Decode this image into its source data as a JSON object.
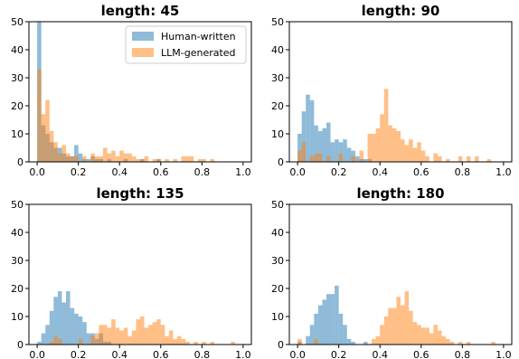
{
  "colors": {
    "human": "#1f77b4",
    "llm": "#ff7f0e",
    "bar_opacity": 0.5,
    "axis": "#000000",
    "background": "#ffffff"
  },
  "legend": {
    "placement": "top-right of first panel",
    "entries": [
      {
        "label": "Human-written",
        "color": "#1f77b4"
      },
      {
        "label": "LLM-generated",
        "color": "#ff7f0e"
      }
    ]
  },
  "chart_data": [
    {
      "type": "histogram",
      "title": "length: 45",
      "bin_width": 0.02,
      "xlim": [
        -0.04,
        1.04
      ],
      "ylim": [
        0,
        50
      ],
      "xticks": [
        "0.0",
        "0.2",
        "0.4",
        "0.6",
        "0.8",
        "1.0"
      ],
      "yticks": [
        "0",
        "10",
        "20",
        "30",
        "40",
        "50"
      ],
      "series": [
        {
          "name": "Human-written",
          "bins": [
            [
              0.0,
              50
            ],
            [
              0.02,
              13
            ],
            [
              0.04,
              10
            ],
            [
              0.06,
              7
            ],
            [
              0.08,
              5
            ],
            [
              0.1,
              5
            ],
            [
              0.12,
              3
            ],
            [
              0.14,
              2
            ],
            [
              0.16,
              2
            ],
            [
              0.18,
              6
            ],
            [
              0.2,
              3
            ],
            [
              0.22,
              1
            ],
            [
              0.24,
              1
            ],
            [
              0.26,
              2
            ],
            [
              0.28,
              1
            ],
            [
              0.3,
              1
            ],
            [
              0.34,
              1
            ],
            [
              0.42,
              1
            ],
            [
              0.5,
              1
            ],
            [
              0.58,
              1
            ]
          ]
        },
        {
          "name": "LLM-generated",
          "bins": [
            [
              0.0,
              33
            ],
            [
              0.02,
              17
            ],
            [
              0.04,
              22
            ],
            [
              0.06,
              11
            ],
            [
              0.08,
              7
            ],
            [
              0.1,
              3
            ],
            [
              0.12,
              6
            ],
            [
              0.14,
              3
            ],
            [
              0.16,
              2
            ],
            [
              0.18,
              2
            ],
            [
              0.22,
              2
            ],
            [
              0.26,
              3
            ],
            [
              0.28,
              2
            ],
            [
              0.3,
              2
            ],
            [
              0.32,
              5
            ],
            [
              0.34,
              3
            ],
            [
              0.36,
              4
            ],
            [
              0.38,
              2
            ],
            [
              0.4,
              4
            ],
            [
              0.42,
              3
            ],
            [
              0.44,
              3
            ],
            [
              0.46,
              2
            ],
            [
              0.48,
              1
            ],
            [
              0.5,
              1
            ],
            [
              0.52,
              2
            ],
            [
              0.56,
              1
            ],
            [
              0.58,
              1
            ],
            [
              0.62,
              1
            ],
            [
              0.66,
              1
            ],
            [
              0.7,
              2
            ],
            [
              0.72,
              2
            ],
            [
              0.74,
              2
            ],
            [
              0.78,
              1
            ],
            [
              0.8,
              1
            ],
            [
              0.84,
              1
            ]
          ]
        }
      ]
    },
    {
      "type": "histogram",
      "title": "length: 90",
      "bin_width": 0.02,
      "xlim": [
        -0.04,
        1.04
      ],
      "ylim": [
        0,
        50
      ],
      "xticks": [
        "0.0",
        "0.2",
        "0.4",
        "0.6",
        "0.8",
        "1.0"
      ],
      "yticks": [
        "0",
        "10",
        "20",
        "30",
        "40",
        "50"
      ],
      "series": [
        {
          "name": "Human-written",
          "bins": [
            [
              0.0,
              10
            ],
            [
              0.02,
              18
            ],
            [
              0.04,
              24
            ],
            [
              0.06,
              22
            ],
            [
              0.08,
              13
            ],
            [
              0.1,
              11
            ],
            [
              0.12,
              12
            ],
            [
              0.14,
              14
            ],
            [
              0.16,
              7
            ],
            [
              0.18,
              8
            ],
            [
              0.2,
              7
            ],
            [
              0.22,
              8
            ],
            [
              0.24,
              5
            ],
            [
              0.26,
              4
            ],
            [
              0.28,
              2
            ],
            [
              0.3,
              1
            ],
            [
              0.32,
              1
            ],
            [
              0.34,
              1
            ]
          ]
        },
        {
          "name": "LLM-generated",
          "bins": [
            [
              0.0,
              4
            ],
            [
              0.02,
              7
            ],
            [
              0.06,
              2
            ],
            [
              0.08,
              3
            ],
            [
              0.1,
              3
            ],
            [
              0.14,
              2
            ],
            [
              0.2,
              3
            ],
            [
              0.26,
              2
            ],
            [
              0.3,
              4
            ],
            [
              0.34,
              10
            ],
            [
              0.36,
              10
            ],
            [
              0.38,
              12
            ],
            [
              0.4,
              17
            ],
            [
              0.42,
              26
            ],
            [
              0.44,
              13
            ],
            [
              0.46,
              12
            ],
            [
              0.48,
              11
            ],
            [
              0.5,
              8
            ],
            [
              0.52,
              6
            ],
            [
              0.54,
              8
            ],
            [
              0.56,
              5
            ],
            [
              0.58,
              7
            ],
            [
              0.6,
              4
            ],
            [
              0.62,
              2
            ],
            [
              0.66,
              3
            ],
            [
              0.68,
              2
            ],
            [
              0.72,
              1
            ],
            [
              0.78,
              2
            ],
            [
              0.82,
              2
            ],
            [
              0.86,
              2
            ],
            [
              0.92,
              1
            ]
          ]
        }
      ]
    },
    {
      "type": "histogram",
      "title": "length: 135",
      "bin_width": 0.02,
      "xlim": [
        -0.04,
        1.04
      ],
      "ylim": [
        0,
        50
      ],
      "xticks": [
        "0.0",
        "0.2",
        "0.4",
        "0.6",
        "0.8",
        "1.0"
      ],
      "yticks": [
        "0",
        "10",
        "20",
        "30",
        "40",
        "50"
      ],
      "series": [
        {
          "name": "Human-written",
          "bins": [
            [
              0.0,
              1
            ],
            [
              0.02,
              4
            ],
            [
              0.04,
              7
            ],
            [
              0.06,
              12
            ],
            [
              0.08,
              17
            ],
            [
              0.1,
              19
            ],
            [
              0.12,
              15
            ],
            [
              0.14,
              19
            ],
            [
              0.16,
              13
            ],
            [
              0.18,
              11
            ],
            [
              0.2,
              10
            ],
            [
              0.22,
              8
            ],
            [
              0.24,
              4
            ],
            [
              0.26,
              4
            ],
            [
              0.28,
              2
            ],
            [
              0.3,
              4
            ],
            [
              0.32,
              1
            ],
            [
              0.34,
              1
            ]
          ]
        },
        {
          "name": "LLM-generated",
          "bins": [
            [
              0.06,
              1
            ],
            [
              0.08,
              3
            ],
            [
              0.1,
              2
            ],
            [
              0.2,
              2
            ],
            [
              0.26,
              3
            ],
            [
              0.28,
              4
            ],
            [
              0.3,
              7
            ],
            [
              0.32,
              7
            ],
            [
              0.34,
              6
            ],
            [
              0.36,
              9
            ],
            [
              0.38,
              6
            ],
            [
              0.4,
              5
            ],
            [
              0.42,
              6
            ],
            [
              0.44,
              3
            ],
            [
              0.46,
              5
            ],
            [
              0.48,
              9
            ],
            [
              0.5,
              10
            ],
            [
              0.52,
              6
            ],
            [
              0.54,
              7
            ],
            [
              0.56,
              8
            ],
            [
              0.58,
              9
            ],
            [
              0.6,
              7
            ],
            [
              0.62,
              3
            ],
            [
              0.64,
              5
            ],
            [
              0.66,
              2
            ],
            [
              0.68,
              3
            ],
            [
              0.7,
              2
            ],
            [
              0.72,
              1
            ],
            [
              0.76,
              1
            ],
            [
              0.8,
              1
            ],
            [
              0.84,
              1
            ],
            [
              0.94,
              1
            ]
          ]
        }
      ]
    },
    {
      "type": "histogram",
      "title": "length: 180",
      "bin_width": 0.02,
      "xlim": [
        -0.04,
        1.04
      ],
      "ylim": [
        0,
        50
      ],
      "xticks": [
        "0.0",
        "0.2",
        "0.4",
        "0.6",
        "0.8",
        "1.0"
      ],
      "yticks": [
        "0",
        "10",
        "20",
        "30",
        "40",
        "50"
      ],
      "series": [
        {
          "name": "Human-written",
          "bins": [
            [
              0.0,
              1
            ],
            [
              0.04,
              3
            ],
            [
              0.06,
              7
            ],
            [
              0.08,
              11
            ],
            [
              0.1,
              14
            ],
            [
              0.12,
              16
            ],
            [
              0.14,
              18
            ],
            [
              0.16,
              18
            ],
            [
              0.18,
              21
            ],
            [
              0.2,
              11
            ],
            [
              0.22,
              7
            ],
            [
              0.24,
              2
            ],
            [
              0.26,
              1
            ],
            [
              0.32,
              1
            ]
          ]
        },
        {
          "name": "LLM-generated",
          "bins": [
            [
              0.0,
              2
            ],
            [
              0.08,
              2
            ],
            [
              0.36,
              2
            ],
            [
              0.38,
              3
            ],
            [
              0.4,
              7
            ],
            [
              0.42,
              10
            ],
            [
              0.44,
              13
            ],
            [
              0.46,
              13
            ],
            [
              0.48,
              17
            ],
            [
              0.5,
              14
            ],
            [
              0.52,
              19
            ],
            [
              0.54,
              12
            ],
            [
              0.56,
              8
            ],
            [
              0.58,
              7
            ],
            [
              0.6,
              6
            ],
            [
              0.62,
              6
            ],
            [
              0.64,
              4
            ],
            [
              0.66,
              7
            ],
            [
              0.68,
              5
            ],
            [
              0.7,
              3
            ],
            [
              0.72,
              2
            ],
            [
              0.74,
              1
            ],
            [
              0.78,
              1
            ],
            [
              0.82,
              1
            ],
            [
              0.94,
              1
            ]
          ]
        }
      ]
    }
  ]
}
